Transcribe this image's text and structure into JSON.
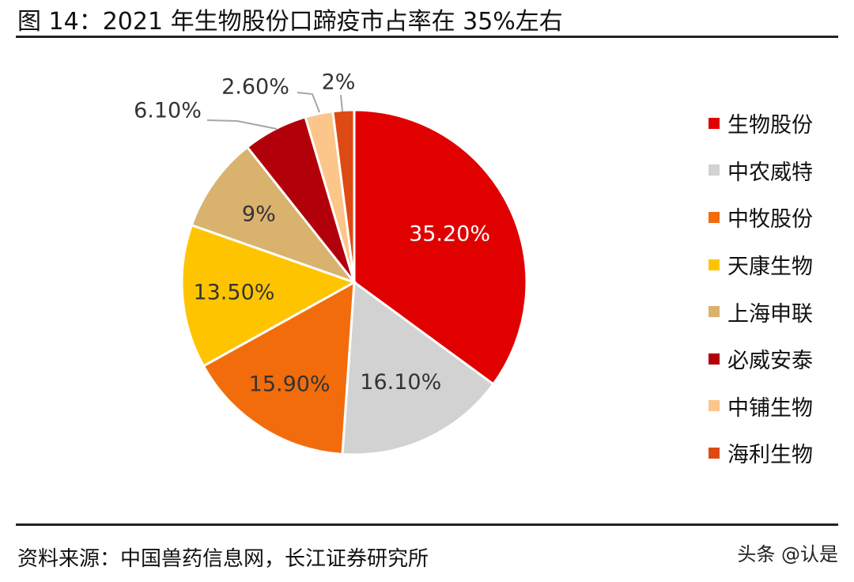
{
  "figure": {
    "title": "图 14：2021 年生物股份口蹄疫市占率在 35%左右",
    "source": "资料来源：中国兽药信息网，长江证券研究所",
    "watermark": "头条 @认是"
  },
  "chart_data": {
    "type": "pie",
    "categories": [
      "生物股份",
      "中农威特",
      "中牧股份",
      "天康生物",
      "上海申联",
      "必威安泰",
      "中铺生物",
      "海利生物"
    ],
    "values": [
      35.2,
      16.1,
      15.9,
      13.5,
      9,
      6.1,
      2.6,
      2
    ],
    "labels": [
      "35.20%",
      "16.10%",
      "15.90%",
      "13.50%",
      "9%",
      "6.10%",
      "2.60%",
      "2%"
    ],
    "colors": [
      "#e00000",
      "#d2d2d2",
      "#f26c0c",
      "#ffc400",
      "#d9b26e",
      "#b2000a",
      "#fcc58a",
      "#de4a14"
    ],
    "label_colors": [
      "#ffffff",
      "#333333",
      "#333333",
      "#333333",
      "#333333",
      "#333333",
      "#333333",
      "#333333"
    ],
    "start_angle_deg": 0,
    "direction": "clockwise",
    "legend_position": "right"
  }
}
